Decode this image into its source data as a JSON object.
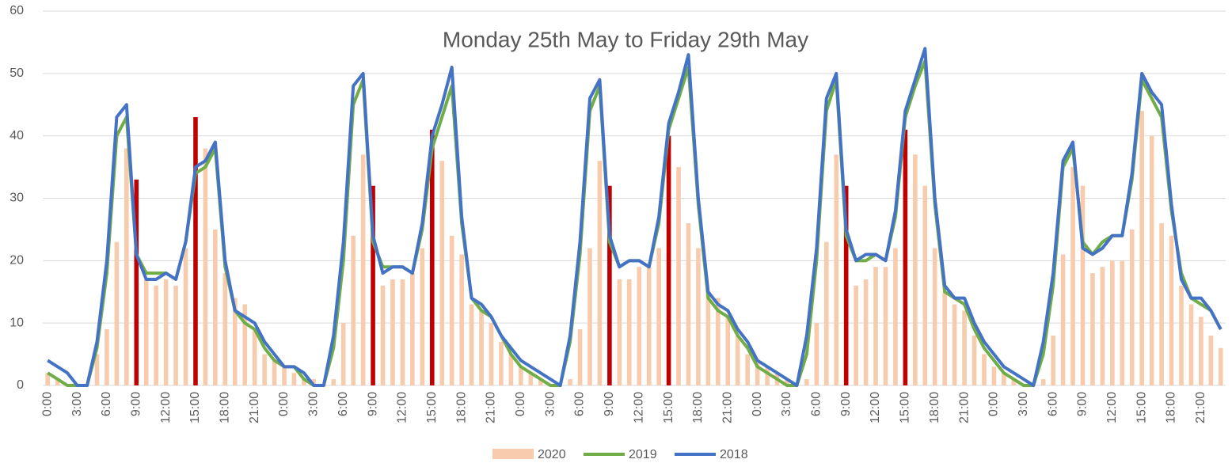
{
  "chart_data": {
    "type": "bar_line",
    "title": "Monday 25th May to Friday 29th May",
    "categories": [
      "0:00",
      null,
      null,
      "3:00",
      null,
      null,
      "6:00",
      null,
      null,
      "9:00",
      null,
      null,
      "12:00",
      null,
      null,
      "15:00",
      null,
      null,
      "18:00",
      null,
      null,
      "21:00",
      null,
      null,
      "0:00",
      null,
      null,
      "3:00",
      null,
      null,
      "6:00",
      null,
      null,
      "9:00",
      null,
      null,
      "12:00",
      null,
      null,
      "15:00",
      null,
      null,
      "18:00",
      null,
      null,
      "21:00",
      null,
      null,
      "0:00",
      null,
      null,
      "3:00",
      null,
      null,
      "6:00",
      null,
      null,
      "9:00",
      null,
      null,
      "12:00",
      null,
      null,
      "15:00",
      null,
      null,
      "18:00",
      null,
      null,
      "21:00",
      null,
      null,
      "0:00",
      null,
      null,
      "3:00",
      null,
      null,
      "6:00",
      null,
      null,
      "9:00",
      null,
      null,
      "12:00",
      null,
      null,
      "15:00",
      null,
      null,
      "18:00",
      null,
      null,
      "21:00",
      null,
      null,
      "0:00",
      null,
      null,
      "3:00",
      null,
      null,
      "6:00",
      null,
      null,
      "9:00",
      null,
      null,
      "12:00",
      null,
      null,
      "15:00",
      null,
      null,
      "18:00",
      null,
      null,
      "21:00",
      null,
      null
    ],
    "series": [
      {
        "name": "2020",
        "kind": "bar",
        "color": "#f8cbad",
        "values": [
          2,
          1,
          0,
          0,
          0,
          5,
          9,
          23,
          38,
          33,
          17,
          16,
          17,
          16,
          22,
          43,
          38,
          25,
          18,
          14,
          13,
          9,
          5,
          4,
          3,
          2,
          1,
          1,
          0,
          1,
          10,
          24,
          37,
          32,
          16,
          17,
          17,
          18,
          22,
          41,
          36,
          24,
          21,
          13,
          12,
          10,
          7,
          5,
          3,
          2,
          1,
          0,
          0,
          1,
          9,
          22,
          36,
          32,
          17,
          17,
          19,
          19,
          22,
          40,
          35,
          26,
          22,
          15,
          14,
          11,
          8,
          5,
          4,
          3,
          2,
          1,
          0,
          1,
          10,
          23,
          37,
          32,
          16,
          17,
          19,
          19,
          22,
          41,
          37,
          32,
          22,
          15,
          13,
          12,
          8,
          5,
          3,
          2,
          1,
          0,
          0,
          1,
          8,
          21,
          35,
          32,
          18,
          19,
          20,
          20,
          25,
          44,
          40,
          26,
          24,
          16,
          13,
          11,
          8,
          6
        ],
        "colors": [
          "#f8cbad",
          "#f8cbad",
          "#f8cbad",
          "#f8cbad",
          "#f8cbad",
          "#f8cbad",
          "#f8cbad",
          "#f8cbad",
          "#f8cbad",
          "#c00000",
          "#f8cbad",
          "#f8cbad",
          "#f8cbad",
          "#f8cbad",
          "#f8cbad",
          "#c00000",
          "#f8cbad",
          "#f8cbad",
          "#f8cbad",
          "#f8cbad",
          "#f8cbad",
          "#f8cbad",
          "#f8cbad",
          "#f8cbad",
          "#f8cbad",
          "#f8cbad",
          "#f8cbad",
          "#f8cbad",
          "#f8cbad",
          "#f8cbad",
          "#f8cbad",
          "#f8cbad",
          "#f8cbad",
          "#c00000",
          "#f8cbad",
          "#f8cbad",
          "#f8cbad",
          "#f8cbad",
          "#f8cbad",
          "#c00000",
          "#f8cbad",
          "#f8cbad",
          "#f8cbad",
          "#f8cbad",
          "#f8cbad",
          "#f8cbad",
          "#f8cbad",
          "#f8cbad",
          "#f8cbad",
          "#f8cbad",
          "#f8cbad",
          "#f8cbad",
          "#f8cbad",
          "#f8cbad",
          "#f8cbad",
          "#f8cbad",
          "#f8cbad",
          "#c00000",
          "#f8cbad",
          "#f8cbad",
          "#f8cbad",
          "#f8cbad",
          "#f8cbad",
          "#c00000",
          "#f8cbad",
          "#f8cbad",
          "#f8cbad",
          "#f8cbad",
          "#f8cbad",
          "#f8cbad",
          "#f8cbad",
          "#f8cbad",
          "#f8cbad",
          "#f8cbad",
          "#f8cbad",
          "#f8cbad",
          "#f8cbad",
          "#f8cbad",
          "#f8cbad",
          "#f8cbad",
          "#f8cbad",
          "#c00000",
          "#f8cbad",
          "#f8cbad",
          "#f8cbad",
          "#f8cbad",
          "#f8cbad",
          "#c00000",
          "#f8cbad",
          "#f8cbad",
          "#f8cbad",
          "#f8cbad",
          "#f8cbad",
          "#f8cbad",
          "#f8cbad",
          "#f8cbad",
          "#f8cbad",
          "#f8cbad",
          "#f8cbad",
          "#f8cbad",
          "#f8cbad",
          "#f8cbad",
          "#f8cbad",
          "#f8cbad",
          "#f8cbad",
          "#f8cbad",
          "#f8cbad",
          "#f8cbad",
          "#f8cbad",
          "#f8cbad",
          "#f8cbad",
          "#f8cbad",
          "#f8cbad",
          "#f8cbad",
          "#f8cbad",
          "#f8cbad",
          "#f8cbad",
          "#f8cbad",
          "#f8cbad",
          "#f8cbad"
        ]
      },
      {
        "name": "2019",
        "kind": "line",
        "color": "#70ad47",
        "values": [
          2,
          1,
          0,
          0,
          0,
          6,
          18,
          40,
          43,
          21,
          18,
          18,
          18,
          17,
          23,
          34,
          35,
          38,
          19,
          12,
          10,
          9,
          6,
          4,
          3,
          3,
          1,
          0,
          0,
          6,
          20,
          45,
          49,
          23,
          19,
          19,
          19,
          18,
          25,
          38,
          43,
          48,
          26,
          14,
          12,
          11,
          8,
          5,
          3,
          2,
          1,
          0,
          0,
          7,
          21,
          44,
          48,
          23,
          19,
          20,
          20,
          19,
          26,
          41,
          46,
          51,
          29,
          14,
          12,
          11,
          8,
          6,
          3,
          2,
          1,
          0,
          0,
          5,
          20,
          44,
          49,
          24,
          20,
          20,
          21,
          20,
          27,
          43,
          48,
          52,
          29,
          15,
          14,
          13,
          9,
          6,
          4,
          2,
          1,
          0,
          0,
          5,
          16,
          35,
          38,
          23,
          21,
          23,
          24,
          24,
          33,
          49,
          46,
          43,
          28,
          18,
          14,
          13,
          12,
          9
        ]
      },
      {
        "name": "2018",
        "kind": "line",
        "color": "#4472c4",
        "values": [
          4,
          3,
          2,
          0,
          0,
          7,
          20,
          43,
          45,
          21,
          17,
          17,
          18,
          17,
          23,
          35,
          36,
          39,
          20,
          12,
          11,
          10,
          7,
          5,
          3,
          3,
          2,
          0,
          0,
          8,
          23,
          48,
          50,
          24,
          18,
          19,
          19,
          18,
          26,
          40,
          45,
          51,
          27,
          14,
          13,
          11,
          8,
          6,
          4,
          3,
          2,
          1,
          0,
          8,
          23,
          46,
          49,
          24,
          19,
          20,
          20,
          19,
          27,
          42,
          47,
          53,
          30,
          15,
          13,
          12,
          9,
          7,
          4,
          3,
          2,
          1,
          0,
          8,
          22,
          46,
          50,
          25,
          20,
          21,
          21,
          20,
          28,
          44,
          49,
          54,
          30,
          16,
          14,
          14,
          10,
          7,
          5,
          3,
          2,
          1,
          0,
          7,
          18,
          36,
          39,
          22,
          21,
          22,
          24,
          24,
          34,
          50,
          47,
          45,
          29,
          17,
          14,
          14,
          12,
          9
        ]
      }
    ],
    "ylim": [
      0,
      60
    ],
    "yticks": [
      0,
      10,
      20,
      30,
      40,
      50,
      60
    ],
    "grid": true,
    "legend": "bottom"
  }
}
